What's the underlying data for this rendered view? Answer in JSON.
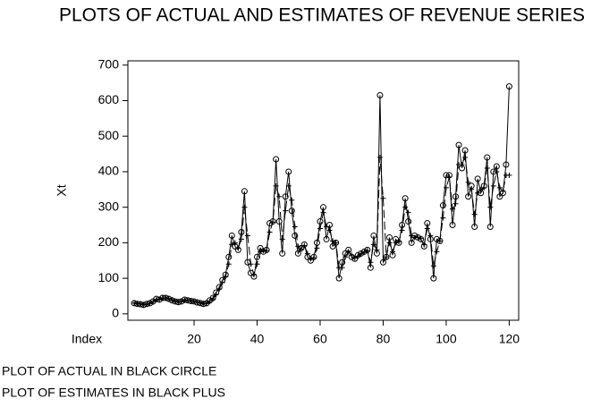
{
  "chart_data": {
    "type": "line",
    "title": "PLOTS OF ACTUAL AND ESTIMATES OF REVENUE SERIES",
    "y_label": "Xt",
    "x_label": "Index",
    "notes": [
      "PLOT OF ACTUAL IN BLACK CIRCLE",
      "PLOT OF ESTIMATES IN BLACK PLUS"
    ],
    "x": [
      1,
      2,
      3,
      4,
      5,
      6,
      7,
      8,
      9,
      10,
      11,
      12,
      13,
      14,
      15,
      16,
      17,
      18,
      19,
      20,
      21,
      22,
      23,
      24,
      25,
      26,
      27,
      28,
      29,
      30,
      31,
      32,
      33,
      34,
      35,
      36,
      37,
      38,
      39,
      40,
      41,
      42,
      43,
      44,
      45,
      46,
      47,
      48,
      49,
      50,
      51,
      52,
      53,
      54,
      55,
      56,
      57,
      58,
      59,
      60,
      61,
      62,
      63,
      64,
      65,
      66,
      67,
      68,
      69,
      70,
      71,
      72,
      73,
      74,
      75,
      76,
      77,
      78,
      79,
      80,
      81,
      82,
      83,
      84,
      85,
      86,
      87,
      88,
      89,
      90,
      91,
      92,
      93,
      94,
      95,
      96,
      97,
      98,
      99,
      100,
      101,
      102,
      103,
      104,
      105,
      106,
      107,
      108,
      109,
      110,
      111,
      112,
      113,
      114,
      115,
      116,
      117,
      118,
      119,
      120
    ],
    "series": [
      {
        "color": "#000000",
        "marker": "circle",
        "dashed": false,
        "values": [
          30,
          28,
          27,
          25,
          28,
          30,
          35,
          42,
          40,
          45,
          45,
          42,
          38,
          35,
          33,
          35,
          40,
          38,
          36,
          35,
          32,
          30,
          28,
          30,
          38,
          45,
          60,
          75,
          95,
          110,
          160,
          220,
          190,
          180,
          230,
          345,
          145,
          115,
          105,
          160,
          185,
          175,
          180,
          255,
          260,
          435,
          260,
          170,
          330,
          400,
          290,
          220,
          170,
          185,
          195,
          160,
          150,
          160,
          200,
          260,
          300,
          210,
          250,
          190,
          200,
          100,
          145,
          170,
          180,
          160,
          155,
          165,
          170,
          175,
          180,
          130,
          220,
          170,
          615,
          145,
          160,
          215,
          165,
          210,
          200,
          250,
          325,
          260,
          200,
          220,
          215,
          210,
          190,
          255,
          210,
          100,
          210,
          205,
          305,
          390,
          390,
          250,
          330,
          475,
          410,
          460,
          330,
          360,
          245,
          380,
          340,
          360,
          440,
          245,
          400,
          415,
          330,
          340,
          420,
          640
        ]
      },
      {
        "color": "#000000",
        "marker": "plus",
        "dashed": true,
        "values": [
          30,
          29,
          28,
          26,
          27,
          29,
          33,
          40,
          41,
          44,
          45,
          43,
          40,
          36,
          34,
          34,
          38,
          38,
          37,
          35,
          33,
          31,
          29,
          29,
          35,
          42,
          55,
          70,
          88,
          105,
          140,
          195,
          200,
          185,
          210,
          300,
          220,
          140,
          110,
          140,
          175,
          178,
          178,
          230,
          258,
          360,
          330,
          210,
          290,
          360,
          320,
          245,
          190,
          182,
          192,
          170,
          155,
          158,
          185,
          240,
          285,
          245,
          235,
          205,
          200,
          130,
          130,
          160,
          175,
          165,
          157,
          162,
          168,
          173,
          178,
          145,
          195,
          180,
          440,
          325,
          160,
          200,
          175,
          200,
          203,
          235,
          300,
          285,
          220,
          215,
          215,
          212,
          195,
          240,
          220,
          135,
          175,
          205,
          270,
          355,
          385,
          295,
          310,
          420,
          420,
          440,
          370,
          350,
          280,
          340,
          350,
          355,
          410,
          300,
          360,
          400,
          355,
          345,
          390,
          390
        ]
      }
    ],
    "xlim": [
      -1,
      123
    ],
    "xticks": [
      20,
      40,
      60,
      80,
      100,
      120
    ],
    "ylim": [
      -18,
      712
    ],
    "yticks": [
      0,
      100,
      200,
      300,
      400,
      500,
      600,
      700
    ],
    "grid": false
  }
}
